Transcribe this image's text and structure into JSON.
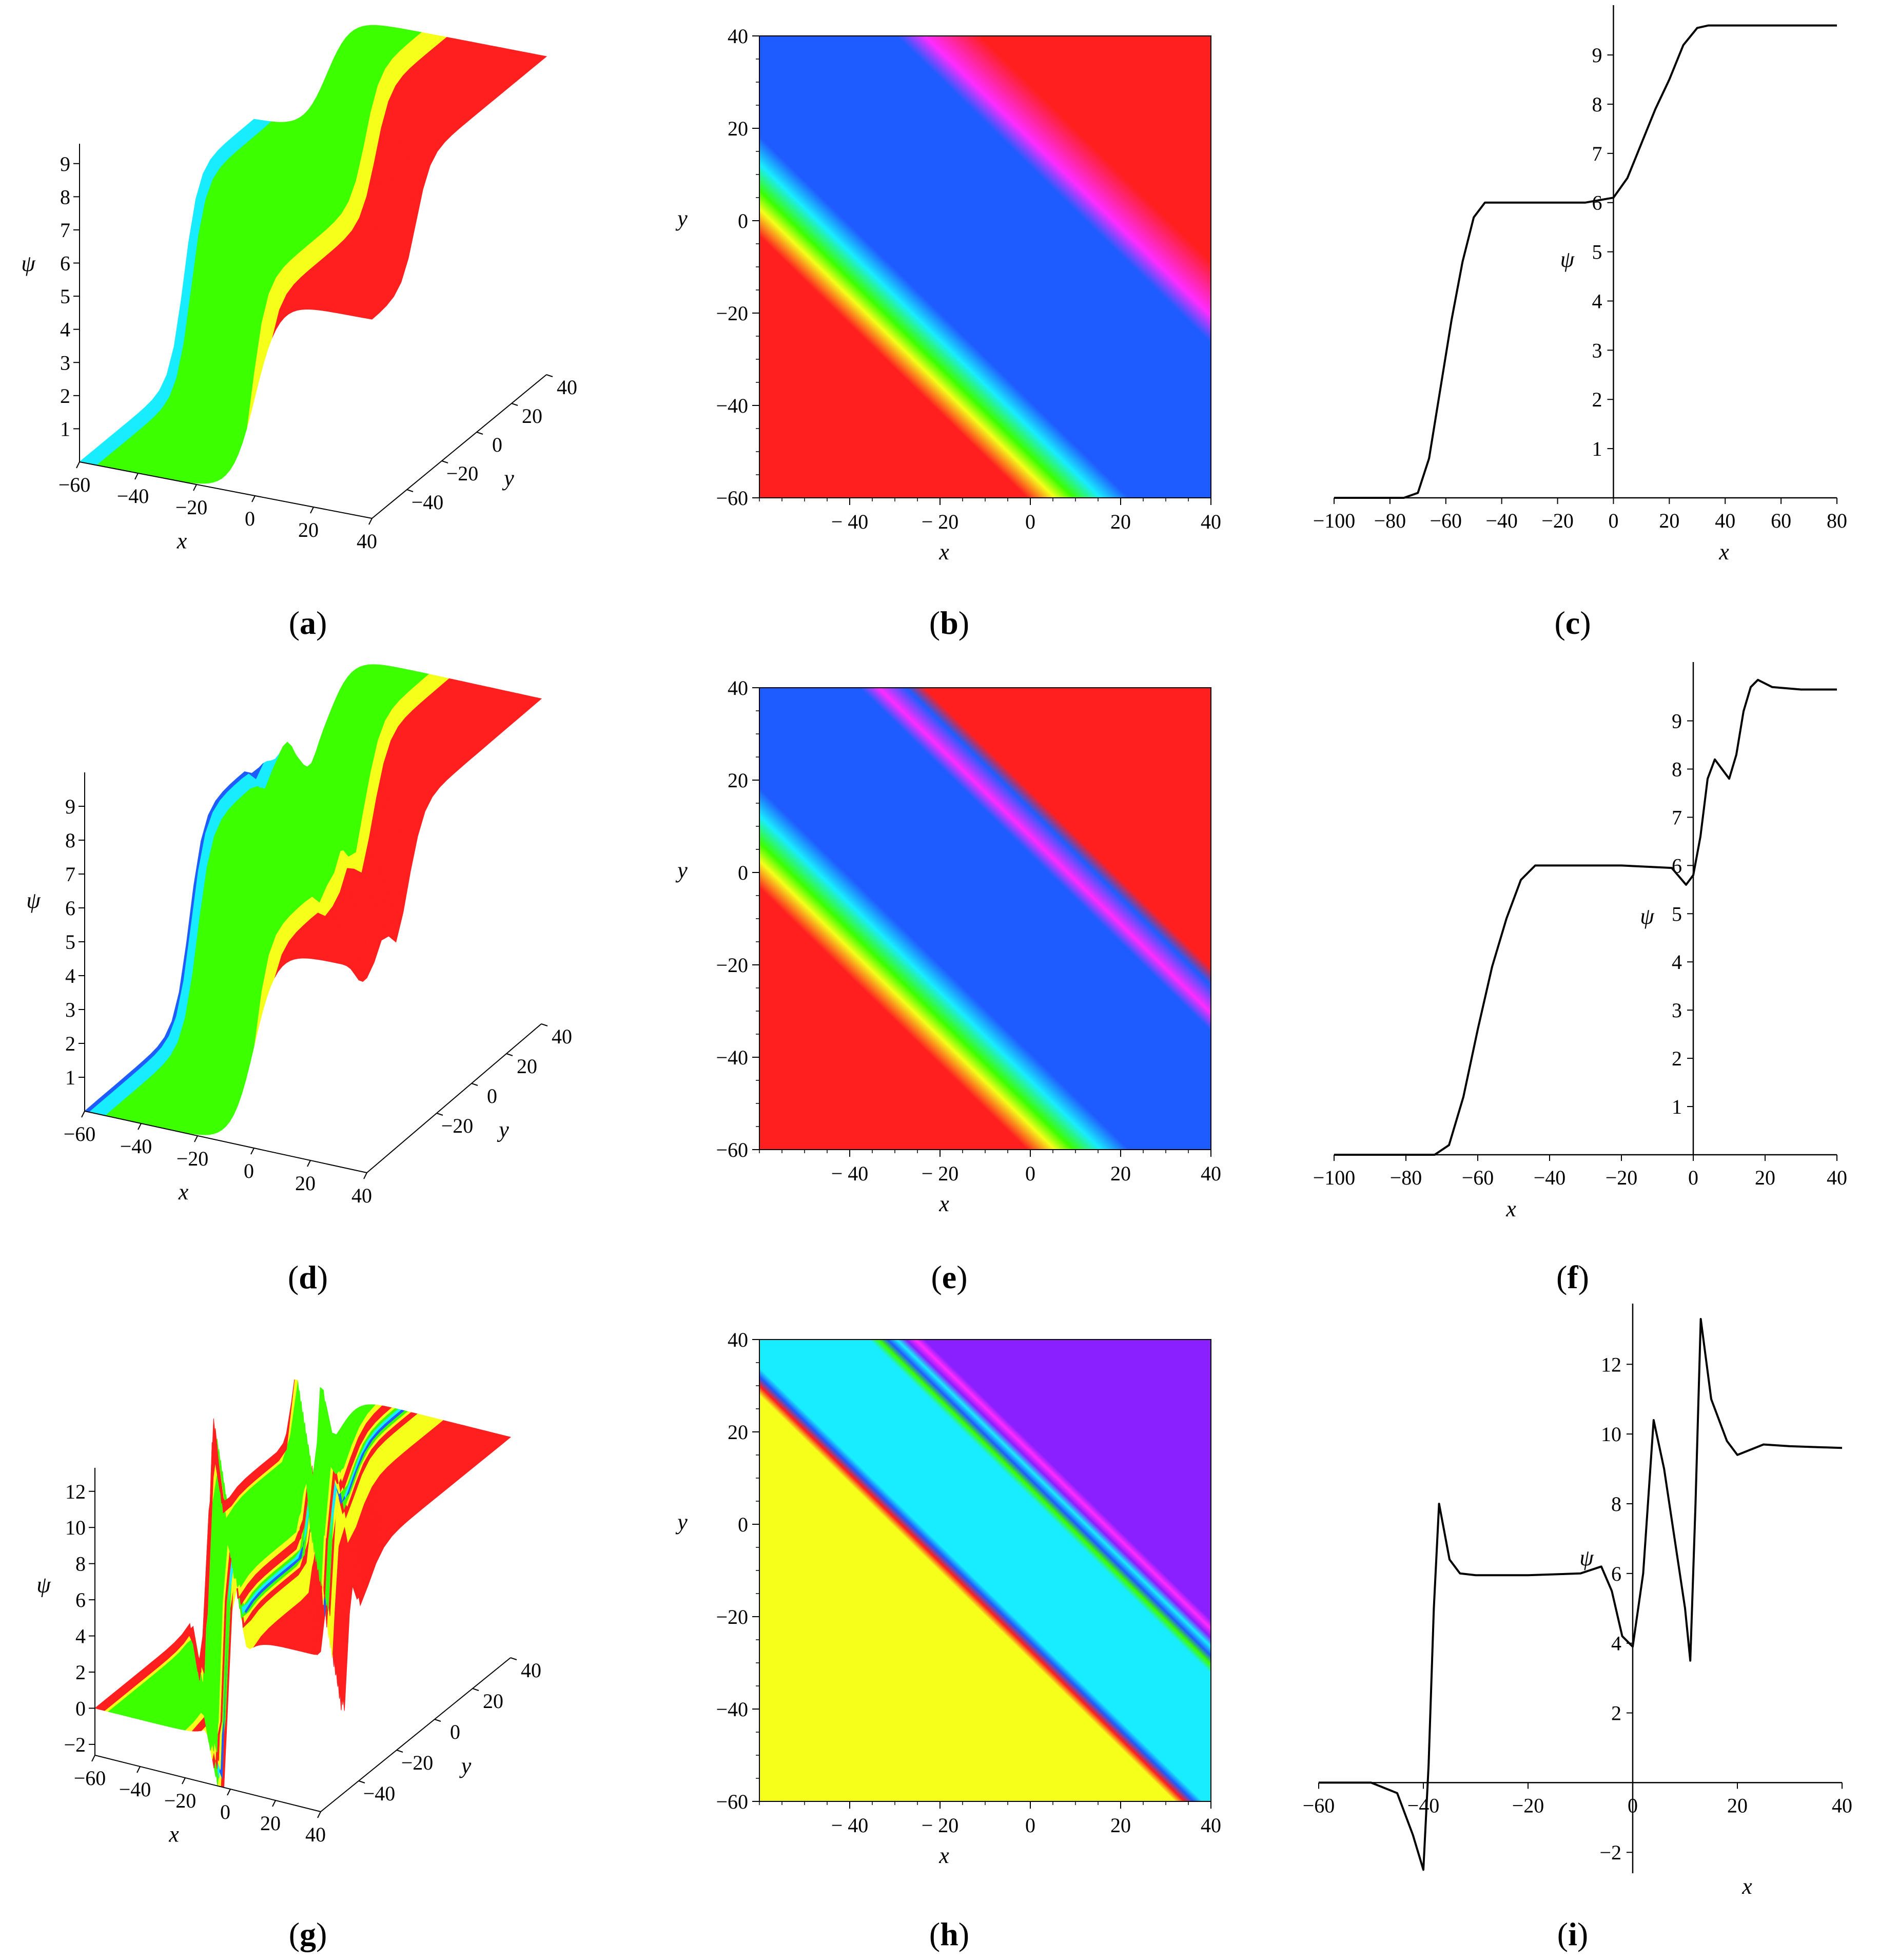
{
  "figure": {
    "colors": {
      "red": "#ff1f1f",
      "blue": "#1f5cff",
      "green": "#3cff00",
      "cyan": "#18ecff",
      "yellow": "#f5ff1a",
      "magenta": "#ff2cff",
      "violet": "#8a1fff",
      "line": "#000000"
    }
  },
  "chart_data": [
    {
      "panel": "a",
      "type": "surface3d",
      "caption": "a",
      "xlabel": "x",
      "ylabel": "y",
      "zlabel": "ψ",
      "xticks": [
        "-60",
        "-40",
        "-20",
        "0",
        "20",
        "40"
      ],
      "yticks": [
        "-40",
        "-20",
        "0",
        "20",
        "40"
      ],
      "zticks": [
        "1",
        "2",
        "3",
        "4",
        "5",
        "6",
        "7",
        "8",
        "9"
      ],
      "xlim": [
        -60,
        40
      ],
      "ylim": [
        -60,
        40
      ],
      "zlim": [
        0,
        9.6
      ],
      "plateaus": [
        0,
        6,
        9.6
      ],
      "colors": [
        "magenta",
        "blue",
        "cyan",
        "green",
        "yellow",
        "red"
      ]
    },
    {
      "panel": "b",
      "type": "heatmap",
      "caption": "b",
      "xlabel": "x",
      "ylabel": "y",
      "xticks": [
        "-40",
        "-20",
        "0",
        "20",
        "40"
      ],
      "yticks": [
        "40",
        "20",
        "0",
        "-20",
        "-40",
        "-60"
      ],
      "xlim": [
        -60,
        40
      ],
      "ylim": [
        -60,
        40
      ],
      "base": "red",
      "bands": [
        {
          "offset": -62,
          "color": "red"
        },
        {
          "offset": -56,
          "color": "yellow"
        },
        {
          "offset": -52,
          "color": "green"
        },
        {
          "offset": -46,
          "color": "cyan"
        },
        {
          "offset": -40,
          "color": "blue"
        },
        {
          "offset": 12,
          "color": "blue"
        },
        {
          "offset": 18,
          "color": "magenta"
        },
        {
          "offset": 30,
          "color": "red"
        }
      ]
    },
    {
      "panel": "c",
      "type": "line",
      "caption": "c",
      "xlabel": "x",
      "ylabel": "ψ",
      "xticks": [
        "-100",
        "-80",
        "-60",
        "-40",
        "-20",
        "0",
        "20",
        "40",
        "60",
        "80"
      ],
      "yticks": [
        "1",
        "2",
        "3",
        "4",
        "5",
        "6",
        "7",
        "8",
        "9"
      ],
      "xlim": [
        -100,
        80
      ],
      "ylim": [
        0,
        9.7
      ],
      "x": [
        -100,
        -75,
        -70,
        -66,
        -62,
        -58,
        -54,
        -50,
        -46,
        -42,
        -30,
        -10,
        0,
        5,
        10,
        15,
        20,
        25,
        30,
        34,
        40,
        60,
        80
      ],
      "y": [
        0,
        0,
        0.1,
        0.8,
        2.2,
        3.6,
        4.8,
        5.7,
        6.0,
        6.0,
        6.0,
        6.0,
        6.1,
        6.5,
        7.2,
        7.9,
        8.5,
        9.2,
        9.55,
        9.6,
        9.6,
        9.6,
        9.6
      ]
    },
    {
      "panel": "d",
      "type": "surface3d",
      "caption": "d",
      "xlabel": "x",
      "ylabel": "y",
      "zlabel": "ψ",
      "xticks": [
        "-60",
        "-40",
        "-20",
        "0",
        "20",
        "40"
      ],
      "yticks": [
        "-20",
        "0",
        "20",
        "40"
      ],
      "zticks": [
        "1",
        "2",
        "3",
        "4",
        "5",
        "6",
        "7",
        "8",
        "9"
      ],
      "xlim": [
        -60,
        40
      ],
      "ylim": [
        -60,
        40
      ],
      "zlim": [
        0,
        10
      ],
      "plateaus": [
        0,
        6,
        9.6
      ],
      "colors": [
        "magenta",
        "blue",
        "cyan",
        "green",
        "yellow",
        "red"
      ]
    },
    {
      "panel": "e",
      "type": "heatmap",
      "caption": "e",
      "xlabel": "x",
      "ylabel": "y",
      "xticks": [
        "-40",
        "-20",
        "0",
        "20",
        "40"
      ],
      "yticks": [
        "40",
        "20",
        "0",
        "-20",
        "-40",
        "-60"
      ],
      "xlim": [
        -60,
        40
      ],
      "ylim": [
        -60,
        40
      ],
      "base": "red",
      "bands": [
        {
          "offset": -62,
          "color": "red"
        },
        {
          "offset": -56,
          "color": "yellow"
        },
        {
          "offset": -52,
          "color": "green"
        },
        {
          "offset": -46,
          "color": "cyan"
        },
        {
          "offset": -40,
          "color": "blue"
        },
        {
          "offset": 4,
          "color": "blue"
        },
        {
          "offset": 8,
          "color": "magenta"
        },
        {
          "offset": 14,
          "color": "blue"
        },
        {
          "offset": 18,
          "color": "red"
        }
      ]
    },
    {
      "panel": "f",
      "type": "line",
      "caption": "f",
      "xlabel": "x",
      "ylabel": "ψ",
      "xticks": [
        "-100",
        "-80",
        "-60",
        "-40",
        "-20",
        "0",
        "20",
        "40"
      ],
      "yticks": [
        "1",
        "2",
        "3",
        "4",
        "5",
        "6",
        "7",
        "8",
        "9"
      ],
      "xlim": [
        -100,
        40
      ],
      "ylim": [
        0,
        9.9
      ],
      "x": [
        -100,
        -72,
        -68,
        -64,
        -60,
        -56,
        -52,
        -48,
        -44,
        -40,
        -20,
        -6,
        -2,
        0,
        2,
        4,
        6,
        8,
        10,
        12,
        14,
        16,
        18,
        22,
        30,
        40
      ],
      "y": [
        0,
        0,
        0.2,
        1.2,
        2.6,
        3.9,
        4.9,
        5.7,
        6.0,
        6.0,
        6.0,
        5.95,
        5.6,
        5.8,
        6.6,
        7.8,
        8.2,
        8.0,
        7.8,
        8.3,
        9.2,
        9.7,
        9.85,
        9.7,
        9.65,
        9.65
      ]
    },
    {
      "panel": "g",
      "type": "surface3d",
      "caption": "g",
      "xlabel": "x",
      "ylabel": "y",
      "zlabel": "ψ",
      "xticks": [
        "-60",
        "-40",
        "-20",
        "0",
        "20",
        "40"
      ],
      "yticks": [
        "-40",
        "-20",
        "0",
        "20",
        "40"
      ],
      "zticks": [
        "-2",
        "0",
        "2",
        "4",
        "6",
        "8",
        "10",
        "12"
      ],
      "xlim": [
        -60,
        40
      ],
      "ylim": [
        -60,
        40
      ],
      "zlim": [
        -2.6,
        13.3
      ],
      "plateaus": [
        0,
        6,
        9.6
      ],
      "colors": [
        "violet",
        "blue",
        "cyan",
        "green",
        "yellow",
        "red",
        "magenta"
      ]
    },
    {
      "panel": "h",
      "type": "heatmap",
      "caption": "h",
      "xlabel": "x",
      "ylabel": "y",
      "xticks": [
        "-40",
        "-20",
        "0",
        "20",
        "40"
      ],
      "yticks": [
        "40",
        "20",
        "0",
        "-20",
        "-40",
        "-60"
      ],
      "xlim": [
        -60,
        40
      ],
      "ylim": [
        -60,
        40
      ],
      "base": "violet",
      "bands": [
        {
          "offset": -30,
          "color": "yellow"
        },
        {
          "offset": -28,
          "color": "red"
        },
        {
          "offset": -26,
          "color": "blue"
        },
        {
          "offset": -24,
          "color": "cyan"
        },
        {
          "offset": 6,
          "color": "cyan"
        },
        {
          "offset": 8,
          "color": "green"
        },
        {
          "offset": 10,
          "color": "blue"
        },
        {
          "offset": 12,
          "color": "cyan"
        },
        {
          "offset": 14,
          "color": "violet"
        },
        {
          "offset": 16,
          "color": "magenta"
        },
        {
          "offset": 18,
          "color": "violet"
        }
      ]
    },
    {
      "panel": "i",
      "type": "line",
      "caption": "i",
      "xlabel": "x",
      "ylabel": "ψ",
      "xticks": [
        "-60",
        "-40",
        "-20",
        "0",
        "20",
        "40"
      ],
      "yticks": [
        "-2",
        "2",
        "4",
        "6",
        "8",
        "10",
        "12"
      ],
      "xlim": [
        -60,
        40
      ],
      "ylim": [
        -2.6,
        13.3
      ],
      "x": [
        -60,
        -50,
        -45,
        -42,
        -40,
        -39,
        -38,
        -37,
        -36,
        -35,
        -33,
        -30,
        -20,
        -10,
        -6,
        -4,
        -2,
        0,
        2,
        4,
        6,
        8,
        10,
        11,
        12,
        13,
        15,
        18,
        20,
        25,
        30,
        40
      ],
      "y": [
        0,
        0,
        -0.3,
        -1.5,
        -2.5,
        0.5,
        5.0,
        8.0,
        7.2,
        6.4,
        6.0,
        5.95,
        5.95,
        6.0,
        6.2,
        5.5,
        4.2,
        3.9,
        6.0,
        10.4,
        9.0,
        7.0,
        5.0,
        3.5,
        8.0,
        13.3,
        11.0,
        9.8,
        9.4,
        9.7,
        9.65,
        9.6
      ]
    }
  ]
}
